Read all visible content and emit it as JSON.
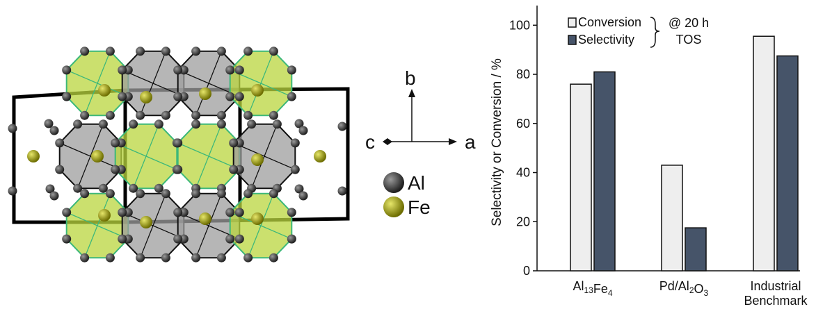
{
  "structure": {
    "axes": {
      "b": "b",
      "c": "c",
      "a": "a"
    },
    "legend": [
      {
        "label": "Al",
        "color": "#2e2e2e"
      },
      {
        "label": "Fe",
        "color": "#a4a400"
      }
    ],
    "colors": {
      "fe_polyhedron": "#b9d63e",
      "fe_polyhedron_edge": "#3db87a",
      "al_polyhedron": "#9e9e9e",
      "cell_edge": "#000000"
    }
  },
  "chart_data": {
    "type": "bar",
    "categories": [
      {
        "base": "Al",
        "sub1": "13",
        "mid": "Fe",
        "sub2": "4",
        "tail": ""
      },
      {
        "base": "Pd/Al",
        "sub1": "2",
        "mid": "O",
        "sub2": "3",
        "tail": ""
      },
      {
        "lines": [
          "Industrial",
          "Benchmark"
        ]
      }
    ],
    "series": [
      {
        "name": "Conversion",
        "values": [
          76,
          43,
          95.5
        ],
        "color": "#eeeeee"
      },
      {
        "name": "Selectivity",
        "values": [
          81,
          17.5,
          87.5
        ],
        "color": "#465469"
      }
    ],
    "ylabel": "Selectivity or Conversion / %",
    "ylim": [
      0,
      108
    ],
    "yticks": [
      0,
      20,
      40,
      60,
      80,
      100
    ],
    "legend_note": [
      "@ 20 h",
      "TOS"
    ],
    "legend_position": "top-left"
  }
}
